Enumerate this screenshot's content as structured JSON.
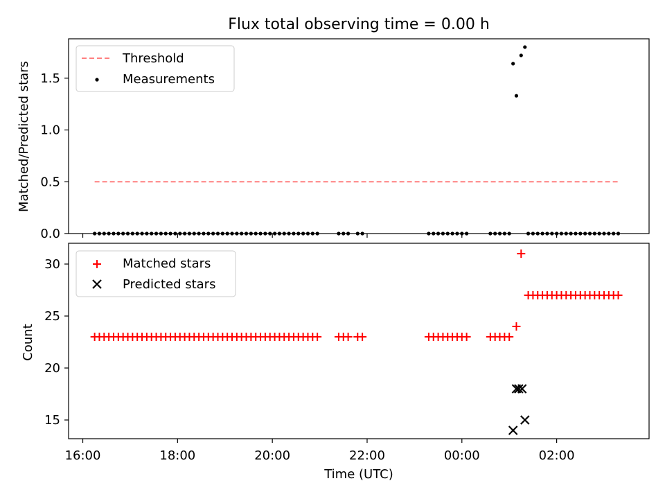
{
  "chart_data": [
    {
      "type": "scatter",
      "title": "Flux total observing time = 0.00 h",
      "xlabel": "",
      "ylabel": "Matched/Predicted stars",
      "ylim": [
        0.0,
        1.88
      ],
      "xlim_hours": [
        15.7,
        27.95
      ],
      "yticks": [
        "0.0",
        "0.5",
        "1.0",
        "1.5"
      ],
      "ytick_values": [
        0.0,
        0.5,
        1.0,
        1.5
      ],
      "grid": false,
      "legend": {
        "placement": "upper-left",
        "entries": [
          {
            "label": "Threshold",
            "style": "dashed-line",
            "color": "#ff7f7f"
          },
          {
            "label": "Measurements",
            "style": "dot",
            "color": "#000000"
          }
        ]
      },
      "threshold": {
        "y": 0.5,
        "x_start": 16.25,
        "x_end": 27.3,
        "color": "#ff7f7f"
      },
      "measurement_segments": [
        {
          "x_start": 16.25,
          "x_end": 20.95,
          "step": 0.1,
          "y": 0
        },
        {
          "x_start": 21.4,
          "x_end": 21.6,
          "step": 0.1,
          "y": 0
        },
        {
          "x_start": 21.8,
          "x_end": 21.9,
          "step": 0.1,
          "y": 0
        },
        {
          "x_start": 23.3,
          "x_end": 24.1,
          "step": 0.1,
          "y": 0
        },
        {
          "x_start": 24.6,
          "x_end": 25.0,
          "step": 0.1,
          "y": 0
        },
        {
          "x_start": 25.4,
          "x_end": 27.35,
          "step": 0.1,
          "y": 0
        }
      ],
      "measurement_points": [
        {
          "x": 25.08,
          "y": 1.64
        },
        {
          "x": 25.15,
          "y": 1.33
        },
        {
          "x": 25.25,
          "y": 1.72
        },
        {
          "x": 25.33,
          "y": 1.8
        }
      ]
    },
    {
      "type": "scatter",
      "title": "",
      "xlabel": "Time (UTC)",
      "ylabel": "Count",
      "ylim": [
        13.2,
        32.0
      ],
      "xlim_hours": [
        15.7,
        27.95
      ],
      "yticks": [
        "15",
        "20",
        "25",
        "30"
      ],
      "ytick_values": [
        15,
        20,
        25,
        30
      ],
      "xticks": [
        "16:00",
        "18:00",
        "20:00",
        "22:00",
        "00:00",
        "02:00"
      ],
      "xtick_hours": [
        16,
        18,
        20,
        22,
        24,
        26
      ],
      "grid": false,
      "legend": {
        "placement": "upper-left",
        "entries": [
          {
            "label": "Matched stars",
            "style": "plus",
            "color": "#ff0000"
          },
          {
            "label": "Predicted stars",
            "style": "x",
            "color": "#000000"
          }
        ]
      },
      "matched_segments": [
        {
          "x_start": 16.25,
          "x_end": 20.95,
          "step": 0.1,
          "y": 23
        },
        {
          "x_start": 21.4,
          "x_end": 21.6,
          "step": 0.1,
          "y": 23
        },
        {
          "x_start": 21.8,
          "x_end": 21.9,
          "step": 0.1,
          "y": 23
        },
        {
          "x_start": 23.3,
          "x_end": 24.1,
          "step": 0.1,
          "y": 23
        },
        {
          "x_start": 24.6,
          "x_end": 25.0,
          "step": 0.1,
          "y": 23
        },
        {
          "x_start": 25.4,
          "x_end": 27.35,
          "step": 0.1,
          "y": 27
        }
      ],
      "matched_points": [
        {
          "x": 25.15,
          "y": 24
        },
        {
          "x": 25.25,
          "y": 31
        }
      ],
      "predicted_points": [
        {
          "x": 25.08,
          "y": 14
        },
        {
          "x": 25.15,
          "y": 18
        },
        {
          "x": 25.2,
          "y": 18
        },
        {
          "x": 25.27,
          "y": 18
        },
        {
          "x": 25.33,
          "y": 15
        }
      ]
    }
  ]
}
